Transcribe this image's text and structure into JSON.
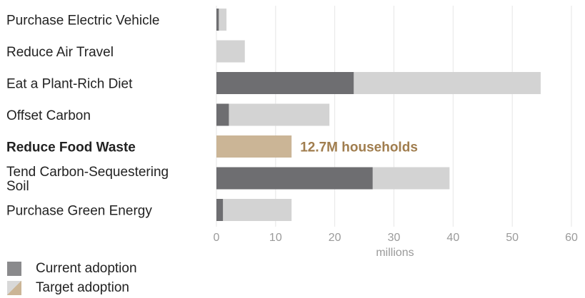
{
  "chart_data": {
    "type": "bar",
    "orientation": "horizontal",
    "stacked": false,
    "categories": [
      "Purchase Electric Vehicle",
      "Reduce Air Travel",
      "Eat a Plant-Rich Diet",
      "Offset Carbon",
      "Reduce Food Waste",
      "Tend Carbon-Sequestering Soil",
      "Purchase Green Energy"
    ],
    "highlighted_category": "Reduce Food Waste",
    "series": [
      {
        "name": "Current adoption",
        "values": [
          0.4,
          0,
          23.2,
          2.1,
          0,
          26.4,
          1.1
        ]
      },
      {
        "name": "Target adoption",
        "values": [
          1.7,
          4.8,
          54.8,
          19.1,
          12.7,
          39.4,
          12.7
        ]
      }
    ],
    "annotation": "12.7M households",
    "xlabel": "millions",
    "xlim": [
      0,
      60
    ],
    "xticks": [
      0,
      10,
      20,
      30,
      40,
      50,
      60
    ],
    "grid": true,
    "legend_position": "bottom-left",
    "colors": {
      "current": "#6e6e71",
      "target": "#d3d3d3",
      "highlight": "#cbb596",
      "highlight_text": "#a07d4e",
      "grid": "#e6e6e6"
    }
  },
  "legend": {
    "items": [
      {
        "name": "Current adoption"
      },
      {
        "name": "Target adoption"
      }
    ]
  }
}
